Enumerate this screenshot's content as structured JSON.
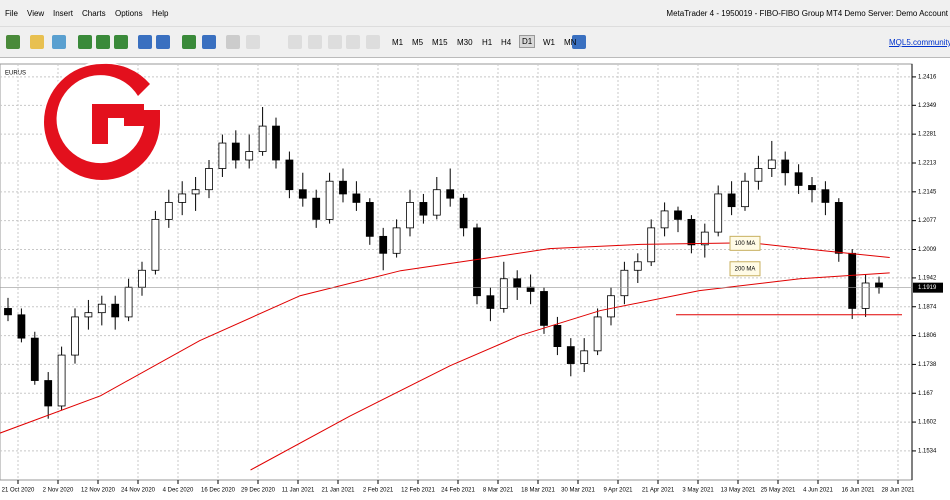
{
  "menu": [
    "File",
    "View",
    "Insert",
    "Charts",
    "Options",
    "Help"
  ],
  "window_title": "MetaTrader 4 - 1950019 - FIBO-FIBO Group MT4 Demo Server: Demo Account",
  "timeframes": [
    "M1",
    "M5",
    "M15",
    "M30",
    "H1",
    "H4",
    "D1",
    "W1",
    "MN"
  ],
  "community_link": "MQL5.community",
  "chart_data": {
    "type": "candlestick",
    "symbol": "EURUS",
    "x_labels": [
      "21 Oct 2020",
      "2 Nov 2020",
      "12 Nov 2020",
      "24 Nov 2020",
      "4 Dec 2020",
      "16 Dec 2020",
      "29 Dec 2020",
      "11 Jan 2021",
      "21 Jan 2021",
      "2 Feb 2021",
      "12 Feb 2021",
      "24 Feb 2021",
      "8 Mar 2021",
      "18 Mar 2021",
      "30 Mar 2021",
      "9 Apr 2021",
      "21 Apr 2021",
      "3 May 2021",
      "13 May 2021",
      "25 May 2021",
      "4 Jun 2021",
      "16 Jun 2021",
      "28 Jun 2021"
    ],
    "candles": [
      [
        1.187,
        1.1895,
        1.184,
        1.1855
      ],
      [
        1.1855,
        1.187,
        1.179,
        1.18
      ],
      [
        1.18,
        1.1815,
        1.169,
        1.17
      ],
      [
        1.17,
        1.172,
        1.161,
        1.164
      ],
      [
        1.164,
        1.178,
        1.163,
        1.176
      ],
      [
        1.176,
        1.187,
        1.174,
        1.185
      ],
      [
        1.185,
        1.189,
        1.182,
        1.186
      ],
      [
        1.186,
        1.19,
        1.183,
        1.188
      ],
      [
        1.188,
        1.19,
        1.182,
        1.185
      ],
      [
        1.185,
        1.194,
        1.184,
        1.192
      ],
      [
        1.192,
        1.198,
        1.19,
        1.196
      ],
      [
        1.196,
        1.21,
        1.195,
        1.208
      ],
      [
        1.208,
        1.215,
        1.206,
        1.212
      ],
      [
        1.212,
        1.217,
        1.209,
        1.214
      ],
      [
        1.214,
        1.218,
        1.21,
        1.215
      ],
      [
        1.215,
        1.222,
        1.213,
        1.22
      ],
      [
        1.22,
        1.228,
        1.218,
        1.226
      ],
      [
        1.226,
        1.229,
        1.22,
        1.222
      ],
      [
        1.222,
        1.228,
        1.22,
        1.224
      ],
      [
        1.224,
        1.2345,
        1.223,
        1.23
      ],
      [
        1.23,
        1.232,
        1.22,
        1.222
      ],
      [
        1.222,
        1.224,
        1.213,
        1.215
      ],
      [
        1.215,
        1.219,
        1.211,
        1.213
      ],
      [
        1.213,
        1.215,
        1.206,
        1.208
      ],
      [
        1.208,
        1.219,
        1.207,
        1.217
      ],
      [
        1.217,
        1.22,
        1.212,
        1.214
      ],
      [
        1.214,
        1.217,
        1.21,
        1.212
      ],
      [
        1.212,
        1.213,
        1.202,
        1.204
      ],
      [
        1.204,
        1.206,
        1.196,
        1.2
      ],
      [
        1.2,
        1.208,
        1.199,
        1.206
      ],
      [
        1.206,
        1.215,
        1.204,
        1.212
      ],
      [
        1.212,
        1.214,
        1.207,
        1.209
      ],
      [
        1.209,
        1.218,
        1.208,
        1.215
      ],
      [
        1.215,
        1.22,
        1.211,
        1.213
      ],
      [
        1.213,
        1.214,
        1.204,
        1.206
      ],
      [
        1.206,
        1.207,
        1.188,
        1.19
      ],
      [
        1.19,
        1.192,
        1.184,
        1.187
      ],
      [
        1.187,
        1.198,
        1.186,
        1.194
      ],
      [
        1.194,
        1.196,
        1.189,
        1.192
      ],
      [
        1.192,
        1.195,
        1.188,
        1.191
      ],
      [
        1.191,
        1.192,
        1.181,
        1.183
      ],
      [
        1.183,
        1.185,
        1.176,
        1.178
      ],
      [
        1.178,
        1.18,
        1.171,
        1.174
      ],
      [
        1.174,
        1.18,
        1.172,
        1.177
      ],
      [
        1.177,
        1.187,
        1.176,
        1.185
      ],
      [
        1.185,
        1.192,
        1.183,
        1.19
      ],
      [
        1.19,
        1.198,
        1.188,
        1.196
      ],
      [
        1.196,
        1.2,
        1.193,
        1.198
      ],
      [
        1.198,
        1.208,
        1.197,
        1.206
      ],
      [
        1.206,
        1.212,
        1.204,
        1.21
      ],
      [
        1.21,
        1.211,
        1.205,
        1.208
      ],
      [
        1.208,
        1.209,
        1.2,
        1.202
      ],
      [
        1.202,
        1.207,
        1.199,
        1.205
      ],
      [
        1.205,
        1.216,
        1.204,
        1.214
      ],
      [
        1.214,
        1.217,
        1.209,
        1.211
      ],
      [
        1.211,
        1.219,
        1.21,
        1.217
      ],
      [
        1.217,
        1.223,
        1.215,
        1.22
      ],
      [
        1.22,
        1.2265,
        1.218,
        1.222
      ],
      [
        1.222,
        1.224,
        1.216,
        1.219
      ],
      [
        1.219,
        1.221,
        1.214,
        1.216
      ],
      [
        1.216,
        1.218,
        1.212,
        1.215
      ],
      [
        1.215,
        1.217,
        1.209,
        1.212
      ],
      [
        1.212,
        1.213,
        1.198,
        1.2
      ],
      [
        1.2,
        1.201,
        1.1845,
        1.187
      ],
      [
        1.187,
        1.195,
        1.185,
        1.193
      ],
      [
        1.193,
        1.1945,
        1.1905,
        1.1919
      ]
    ],
    "series": [
      {
        "name": "100 MA",
        "color": "#e00000",
        "x": [
          -0.6,
          6.9,
          14.3,
          21.8,
          29.3,
          34.5,
          40.4,
          47.2,
          55.4,
          60.6,
          65.8
        ],
        "values": [
          1.1576,
          1.1664,
          1.1794,
          1.19,
          1.1959,
          1.1983,
          1.2011,
          1.2021,
          1.2025,
          1.2007,
          1.199
        ]
      },
      {
        "name": "200 MA",
        "color": "#e00000",
        "x": [
          18.1,
          25.5,
          33.0,
          38.2,
          44.2,
          51.6,
          59.1,
          65.8
        ],
        "values": [
          1.1489,
          1.1616,
          1.1735,
          1.1806,
          1.1865,
          1.1912,
          1.194,
          1.1954
        ]
      }
    ],
    "support_level": 1.1855,
    "current_price": 1.1919,
    "ylim": [
      1.1489,
      1.2437
    ],
    "yticks": [
      1.2416,
      1.2349,
      1.2281,
      1.2213,
      1.2145,
      1.2077,
      1.2009,
      1.1942,
      1.1874,
      1.1806,
      1.1738,
      1.167,
      1.1602,
      1.1534
    ],
    "grid": true
  }
}
